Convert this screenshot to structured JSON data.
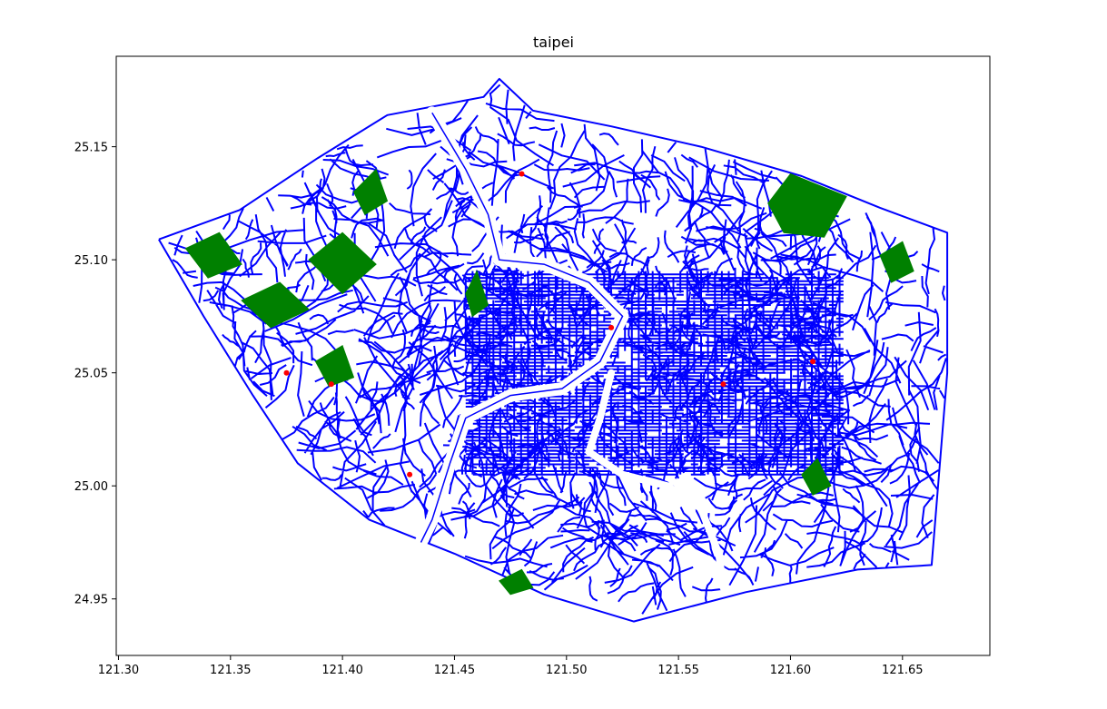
{
  "title": "taipei",
  "colors": {
    "roads": "#0000ff",
    "green_areas": "#008000",
    "points": "#ff0000",
    "background": "#ffffff"
  },
  "chart_data": {
    "type": "map",
    "title": "taipei",
    "xlabel": "",
    "ylabel": "",
    "xlim": [
      121.299,
      121.689
    ],
    "ylim": [
      24.925,
      25.19
    ],
    "grid": false,
    "xticks": [
      121.3,
      121.35,
      121.4,
      121.45,
      121.5,
      121.55,
      121.6,
      121.65
    ],
    "xtick_labels": [
      "121.30",
      "121.35",
      "121.40",
      "121.45",
      "121.50",
      "121.55",
      "121.60",
      "121.65"
    ],
    "yticks": [
      24.95,
      25.0,
      25.05,
      25.1,
      25.15
    ],
    "ytick_labels": [
      "24.95",
      "25.00",
      "25.05",
      "25.10",
      "25.15"
    ],
    "layers": [
      {
        "name": "road network",
        "geom": "line",
        "color": "#0000ff"
      },
      {
        "name": "green areas",
        "geom": "polygon",
        "color": "#008000"
      },
      {
        "name": "points of interest",
        "geom": "point",
        "color": "#ff0000"
      }
    ],
    "region_outline": [
      [
        121.318,
        25.109
      ],
      [
        121.354,
        25.122
      ],
      [
        121.389,
        25.145
      ],
      [
        121.42,
        25.164
      ],
      [
        121.463,
        25.172
      ],
      [
        121.47,
        25.18
      ],
      [
        121.485,
        25.166
      ],
      [
        121.52,
        25.159
      ],
      [
        121.56,
        25.15
      ],
      [
        121.605,
        25.137
      ],
      [
        121.64,
        25.123
      ],
      [
        121.67,
        25.112
      ],
      [
        121.67,
        25.05
      ],
      [
        121.663,
        24.965
      ],
      [
        121.63,
        24.963
      ],
      [
        121.58,
        24.953
      ],
      [
        121.53,
        24.94
      ],
      [
        121.49,
        24.952
      ],
      [
        121.45,
        24.97
      ],
      [
        121.412,
        24.985
      ],
      [
        121.38,
        25.01
      ],
      [
        121.36,
        25.04
      ],
      [
        121.338,
        25.075
      ],
      [
        121.318,
        25.109
      ]
    ],
    "river": [
      [
        121.44,
        25.165
      ],
      [
        121.455,
        25.14
      ],
      [
        121.465,
        25.12
      ],
      [
        121.47,
        25.1
      ],
      [
        121.49,
        25.098
      ],
      [
        121.51,
        25.09
      ],
      [
        121.525,
        25.075
      ],
      [
        121.515,
        25.055
      ],
      [
        121.498,
        25.043
      ],
      [
        121.475,
        25.04
      ],
      [
        121.455,
        25.03
      ],
      [
        121.448,
        25.01
      ],
      [
        121.44,
        24.985
      ],
      [
        121.435,
        24.975
      ]
    ],
    "river2": [
      [
        121.52,
        25.05
      ],
      [
        121.515,
        25.03
      ],
      [
        121.51,
        25.015
      ],
      [
        121.525,
        25.005
      ],
      [
        121.545,
        25.0
      ],
      [
        121.56,
        24.99
      ],
      [
        121.568,
        24.97
      ],
      [
        121.57,
        24.955
      ]
    ],
    "green_areas": [
      [
        [
          121.33,
          25.105
        ],
        [
          121.345,
          25.112
        ],
        [
          121.355,
          25.098
        ],
        [
          121.34,
          25.092
        ]
      ],
      [
        [
          121.355,
          25.082
        ],
        [
          121.372,
          25.09
        ],
        [
          121.385,
          25.078
        ],
        [
          121.368,
          25.07
        ]
      ],
      [
        [
          121.385,
          25.1
        ],
        [
          121.4,
          25.112
        ],
        [
          121.415,
          25.098
        ],
        [
          121.4,
          25.085
        ]
      ],
      [
        [
          121.388,
          25.055
        ],
        [
          121.4,
          25.062
        ],
        [
          121.405,
          25.048
        ],
        [
          121.394,
          25.044
        ]
      ],
      [
        [
          121.405,
          25.13
        ],
        [
          121.415,
          25.14
        ],
        [
          121.42,
          25.126
        ],
        [
          121.41,
          25.12
        ]
      ],
      [
        [
          121.59,
          25.125
        ],
        [
          121.6,
          25.138
        ],
        [
          121.625,
          25.128
        ],
        [
          121.615,
          25.11
        ],
        [
          121.597,
          25.112
        ]
      ],
      [
        [
          121.64,
          25.102
        ],
        [
          121.65,
          25.108
        ],
        [
          121.655,
          25.095
        ],
        [
          121.645,
          25.09
        ]
      ],
      [
        [
          121.605,
          25.005
        ],
        [
          121.612,
          25.012
        ],
        [
          121.618,
          25.0
        ],
        [
          121.61,
          24.996
        ]
      ],
      [
        [
          121.455,
          25.085
        ],
        [
          121.46,
          25.095
        ],
        [
          121.465,
          25.08
        ],
        [
          121.458,
          25.075
        ]
      ],
      [
        [
          121.47,
          24.958
        ],
        [
          121.48,
          24.963
        ],
        [
          121.485,
          24.955
        ],
        [
          121.475,
          24.952
        ]
      ]
    ],
    "hotspots": [
      [
        121.375,
        25.05
      ],
      [
        121.395,
        25.045
      ],
      [
        121.48,
        25.138
      ],
      [
        121.57,
        25.045
      ],
      [
        121.61,
        25.055
      ],
      [
        121.43,
        25.005
      ],
      [
        121.52,
        25.07
      ]
    ]
  }
}
